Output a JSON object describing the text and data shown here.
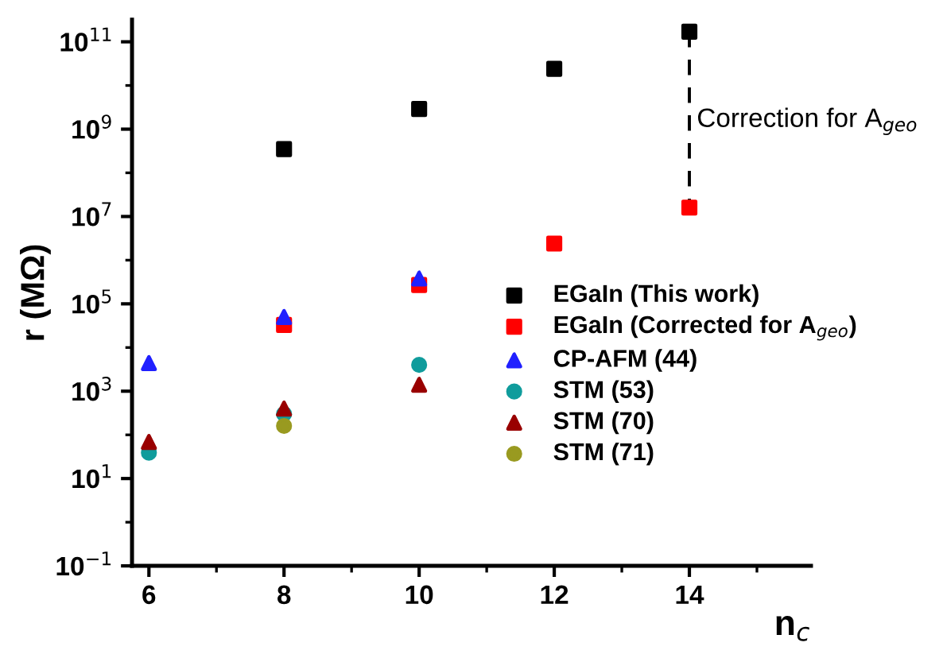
{
  "chart_data": {
    "type": "scatter",
    "xlabel": "n$_{c}$",
    "ylabel": "r (MΩ)",
    "xlim": [
      5.75,
      15.8
    ],
    "xticks": [
      6,
      8,
      10,
      12,
      14
    ],
    "ylim": [
      0.1,
      320000000000.0
    ],
    "log": "y",
    "yticks": [
      {
        "value": 0.1,
        "label": "10$^{−1}$"
      },
      {
        "value": 10,
        "label": "10$^{1}$"
      },
      {
        "value": 1000,
        "label": "10$^{3}$"
      },
      {
        "value": 100000,
        "label": "10$^{5}$"
      },
      {
        "value": 10000000,
        "label": "10$^{7}$"
      },
      {
        "value": 1000000000,
        "label": "10$^{9}$"
      },
      {
        "value": 100000000000,
        "label": "10$^{11}$"
      }
    ],
    "grid": false,
    "legend": "right",
    "series": [
      {
        "name": "EGaIn (This work)",
        "color": "#000000",
        "marker": "square",
        "x": [
          8,
          10,
          12,
          14
        ],
        "values": [
          350000000.0,
          2900000000.0,
          24000000000.0,
          170000000000.0
        ]
      },
      {
        "name": "EGaIn (Corrected for A$_{geo}$)",
        "color": "#ff0000",
        "marker": "square",
        "x": [
          8,
          10,
          12,
          14
        ],
        "values": [
          33000.0,
          270000.0,
          2400000.0,
          16000000.0
        ]
      },
      {
        "name": "CP-AFM (44)",
        "color": "#2020ff",
        "marker": "triangle",
        "x": [
          6,
          8,
          10
        ],
        "values": [
          4400.0,
          50000.0,
          380000.0
        ]
      },
      {
        "name": "STM (53)",
        "color": "#109c9c",
        "marker": "circle",
        "x": [
          6,
          8,
          10
        ],
        "values": [
          39,
          300,
          4000
        ]
      },
      {
        "name": "STM (70)",
        "color": "#990000",
        "marker": "triangle",
        "x": [
          6,
          8,
          10
        ],
        "values": [
          69,
          400,
          1400
        ]
      },
      {
        "name": "STM (71)",
        "color": "#999a20",
        "marker": "circle",
        "x": [
          8
        ],
        "values": [
          160
        ]
      },
      {
        "type": "line",
        "color": "#000000",
        "line_style": "dashed",
        "marker": "none",
        "x": [
          14,
          14
        ],
        "values": [
          170000000000.0,
          16000000.0
        ]
      }
    ],
    "annotations": [
      {
        "text": "Correction for A$_{geo}$",
        "x": 14,
        "y": 1500000000.0
      }
    ]
  }
}
